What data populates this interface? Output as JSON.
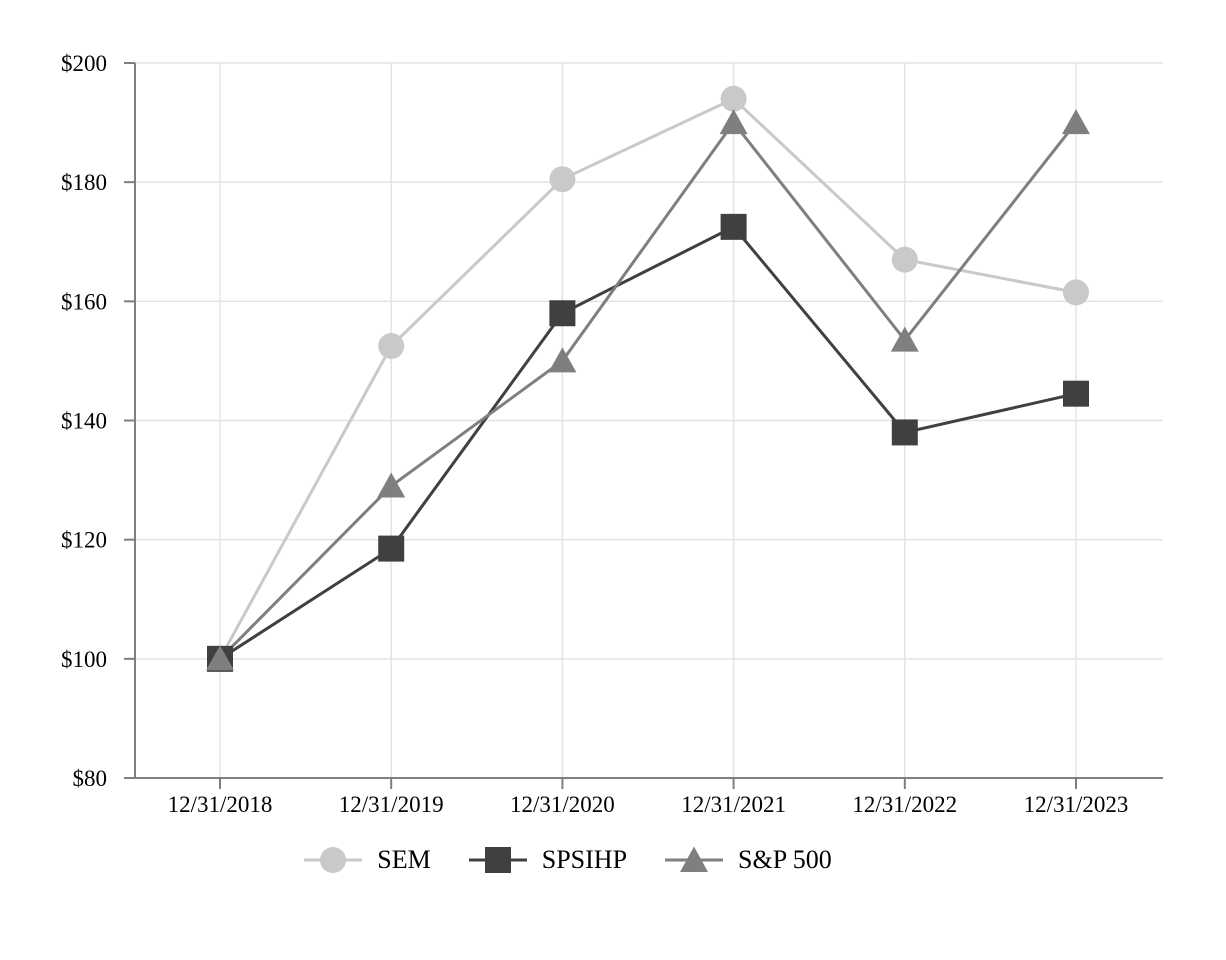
{
  "chart_data": {
    "type": "line",
    "title": "",
    "categories": [
      "12/31/2018",
      "12/31/2019",
      "12/31/2020",
      "12/31/2021",
      "12/31/2022",
      "12/31/2023"
    ],
    "series": [
      {
        "name": "SEM",
        "marker": "circle",
        "color": "#c9c9c9",
        "values": [
          100,
          152.5,
          180.5,
          194.0,
          167.0,
          161.5
        ]
      },
      {
        "name": "SPSIHP",
        "marker": "square",
        "color": "#404040",
        "values": [
          100,
          118.5,
          158.0,
          172.5,
          138.0,
          144.5
        ]
      },
      {
        "name": "S&P 500",
        "marker": "triangle",
        "color": "#7f7f7f",
        "values": [
          100,
          129.0,
          150.0,
          190.0,
          153.5,
          190.0
        ]
      }
    ],
    "y_axis": {
      "min": 80,
      "max": 200,
      "step": 20,
      "tick_prefix": "$",
      "tick_labels": [
        "$80",
        "$100",
        "$120",
        "$140",
        "$160",
        "$180",
        "$200"
      ]
    },
    "x_axis": {
      "tick_labels": [
        "12/31/2018",
        "12/31/2019",
        "12/31/2020",
        "12/31/2021",
        "12/31/2022",
        "12/31/2023"
      ]
    },
    "grid": true,
    "legend_position": "bottom",
    "ylim": [
      80,
      200
    ]
  },
  "styles": {
    "background": "#ffffff",
    "grid_color": "#e3e3e3",
    "axis_color": "#7f7f7f",
    "tick_color": "#7f7f7f",
    "text_color": "#000000"
  }
}
